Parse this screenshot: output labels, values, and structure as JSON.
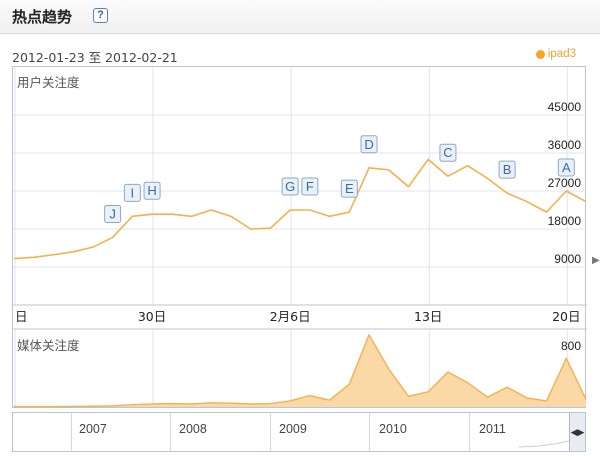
{
  "header": {
    "title": "热点趋势",
    "help_icon": "question-mark-icon"
  },
  "date_range": "2012-01-23 至 2012-02-21",
  "legend": {
    "label": "ipad3",
    "color": "#f5a623"
  },
  "colors": {
    "line": "#f5b04e",
    "area_fill": "#fbd9a6",
    "grid": "#dfe5ec",
    "axis": "#b8c6d8",
    "flag_border": "#8fa8c8",
    "flag_fill": "#e9f0f8"
  },
  "chart_data": [
    {
      "type": "line",
      "title": "用户关注度",
      "x": [
        "2012-01-23",
        "2012-01-24",
        "2012-01-25",
        "2012-01-26",
        "2012-01-27",
        "2012-01-28",
        "2012-01-29",
        "2012-01-30",
        "2012-01-31",
        "2012-02-01",
        "2012-02-02",
        "2012-02-03",
        "2012-02-04",
        "2012-02-05",
        "2012-02-06",
        "2012-02-07",
        "2012-02-08",
        "2012-02-09",
        "2012-02-10",
        "2012-02-11",
        "2012-02-12",
        "2012-02-13",
        "2012-02-14",
        "2012-02-15",
        "2012-02-16",
        "2012-02-17",
        "2012-02-18",
        "2012-02-19",
        "2012-02-20",
        "2012-02-21"
      ],
      "values": [
        11000,
        11300,
        11900,
        12600,
        13700,
        16000,
        21000,
        21500,
        21500,
        21000,
        22500,
        21000,
        18000,
        18200,
        22500,
        22500,
        21000,
        22000,
        32500,
        32000,
        28000,
        34500,
        30500,
        33000,
        30000,
        26500,
        24500,
        22000,
        27000,
        24500
      ],
      "ylim": [
        0,
        54000
      ],
      "yticks": [
        "9000",
        "18000",
        "27000",
        "36000",
        "45000"
      ],
      "ytick_values": [
        9000,
        18000,
        27000,
        36000,
        45000
      ],
      "xticks": [
        {
          "label": "日",
          "index": 0
        },
        {
          "label": "30日",
          "index": 7
        },
        {
          "label": "2月6日",
          "index": 14
        },
        {
          "label": "13日",
          "index": 21
        },
        {
          "label": "20日",
          "index": 28
        }
      ],
      "flags": [
        {
          "label": "J",
          "index": 5
        },
        {
          "label": "I",
          "index": 6
        },
        {
          "label": "H",
          "index": 7
        },
        {
          "label": "G",
          "index": 14
        },
        {
          "label": "F",
          "index": 15
        },
        {
          "label": "E",
          "index": 17
        },
        {
          "label": "D",
          "index": 18
        },
        {
          "label": "C",
          "index": 22
        },
        {
          "label": "B",
          "index": 25
        },
        {
          "label": "A",
          "index": 28
        }
      ],
      "grid": true
    },
    {
      "type": "area",
      "title": "媒体关注度",
      "x": [
        "2012-01-23",
        "2012-01-24",
        "2012-01-25",
        "2012-01-26",
        "2012-01-27",
        "2012-01-28",
        "2012-01-29",
        "2012-01-30",
        "2012-01-31",
        "2012-02-01",
        "2012-02-02",
        "2012-02-03",
        "2012-02-04",
        "2012-02-05",
        "2012-02-06",
        "2012-02-07",
        "2012-02-08",
        "2012-02-09",
        "2012-02-10",
        "2012-02-11",
        "2012-02-12",
        "2012-02-13",
        "2012-02-14",
        "2012-02-15",
        "2012-02-16",
        "2012-02-17",
        "2012-02-18",
        "2012-02-19",
        "2012-02-20",
        "2012-02-21"
      ],
      "values": [
        5,
        5,
        5,
        8,
        10,
        15,
        30,
        40,
        45,
        40,
        55,
        50,
        40,
        45,
        80,
        150,
        90,
        300,
        950,
        500,
        140,
        200,
        460,
        320,
        130,
        260,
        120,
        80,
        640,
        100
      ],
      "ylim": [
        0,
        1000
      ],
      "yticks": [
        "800"
      ],
      "ytick_values": [
        800
      ],
      "grid": true
    }
  ],
  "timeline": {
    "years": [
      "2007",
      "2008",
      "2009",
      "2010",
      "2011"
    ],
    "handle_icon": "range-handle-icon"
  },
  "nav": {
    "right_arrow_icon": "expand-right-icon"
  }
}
